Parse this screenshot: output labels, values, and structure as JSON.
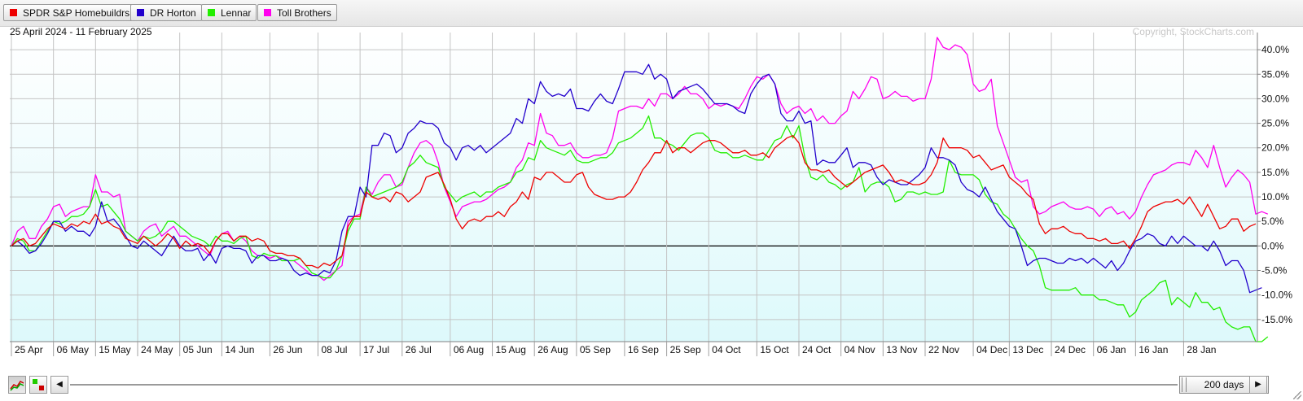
{
  "legend": {
    "items": [
      {
        "label": "SPDR S&P Homebuildrs",
        "color": "#ee0000"
      },
      {
        "label": "DR Horton",
        "color": "#2200cc"
      },
      {
        "label": "Lennar",
        "color": "#22ee00"
      },
      {
        "label": "Toll Brothers",
        "color": "#ff00ee"
      }
    ]
  },
  "chart_data": {
    "type": "line",
    "date_range": "25 April 2024 - 11 February 2025",
    "copyright": "Copyright, StockCharts.com",
    "y_unit": "%",
    "ylim": [
      -19.5,
      43.5
    ],
    "y_ticks": [
      40,
      35,
      30,
      25,
      20,
      15,
      10,
      5,
      0,
      -5,
      -10,
      -15
    ],
    "y_tick_labels": [
      "40.0%",
      "35.0%",
      "30.0%",
      "25.0%",
      "20.0%",
      "15.0%",
      "10.0%",
      "5.0%",
      "0.0%",
      "-5.0%",
      "-10.0%",
      "-15.0%"
    ],
    "x_labels": [
      "25 Apr",
      "06 May",
      "15 May",
      "24 May",
      "05 Jun",
      "14 Jun",
      "26 Jun",
      "08 Jul",
      "17 Jul",
      "26 Jul",
      "06 Aug",
      "15 Aug",
      "26 Aug",
      "05 Sep",
      "16 Sep",
      "25 Sep",
      "04 Oct",
      "15 Oct",
      "24 Oct",
      "04 Nov",
      "13 Nov",
      "22 Nov",
      "04 Dec",
      "13 Dec",
      "24 Dec",
      "06 Jan",
      "16 Jan",
      "28 Jan"
    ],
    "x_label_index": [
      0,
      7,
      14,
      21,
      28,
      35,
      43,
      51,
      58,
      65,
      73,
      80,
      87,
      94,
      102,
      109,
      116,
      124,
      131,
      138,
      145,
      152,
      160,
      166,
      173,
      180,
      187,
      195
    ],
    "grid": true,
    "legend_placement": "top-left",
    "series": [
      {
        "name": "SPDR S&P Homebuildrs",
        "color": "#ee0000",
        "values": [
          0,
          1,
          1.5,
          0,
          0.5,
          2,
          3.5,
          4.5,
          4,
          3.5,
          4.5,
          4,
          5,
          4.5,
          6.5,
          4.5,
          5,
          4,
          3.5,
          1.5,
          1,
          0.5,
          2,
          1,
          0,
          1,
          2.5,
          1.5,
          -0.5,
          1,
          0,
          0.5,
          0,
          -1.5,
          1,
          2.5,
          2.5,
          1,
          2,
          2,
          1,
          1.5,
          1,
          -1,
          -1.5,
          -1.5,
          -2,
          -2,
          -2.5,
          -4,
          -4,
          -4.5,
          -3.5,
          -4,
          -3,
          -2,
          4,
          6,
          6,
          11,
          10,
          9.5,
          10,
          9,
          11,
          10.5,
          9,
          10,
          11,
          14,
          14.5,
          15,
          12.5,
          9.5,
          5.5,
          3.5,
          5,
          5.5,
          5,
          6,
          6,
          7,
          6,
          8,
          9,
          11,
          9.5,
          14,
          13.5,
          15,
          15,
          14,
          13,
          13,
          14.5,
          15,
          12,
          10.5,
          10,
          9.5,
          9.5,
          10,
          10,
          11,
          13,
          15.5,
          17,
          19,
          19,
          21.5,
          19,
          20,
          20,
          19,
          20,
          21,
          21.5,
          21.5,
          21,
          20,
          19,
          19,
          19.5,
          18.5,
          18.5,
          19,
          18,
          20,
          21,
          22,
          22.5,
          21,
          17,
          15.5,
          15.5,
          15,
          15.5,
          14,
          13,
          12,
          13,
          14,
          15,
          15.5,
          16,
          16.5,
          15,
          13,
          13.5,
          13,
          12.5,
          12.5,
          13,
          14.5,
          17,
          22,
          20,
          20,
          20,
          19.5,
          18,
          18.5,
          17,
          15.5,
          16,
          16.5,
          14,
          13,
          12,
          10.5,
          9.5,
          4.5,
          2.5,
          3.5,
          3.5,
          4,
          3,
          2.5,
          2.5,
          1.5,
          1.5,
          1,
          1.5,
          0.5,
          0.5,
          1,
          -0.5,
          1.5,
          4,
          7,
          8,
          8.5,
          9,
          9,
          9.5,
          8.5,
          10,
          8,
          6,
          8.5,
          6,
          3.5,
          4,
          5.5,
          5.5,
          3,
          4,
          4.5
        ]
      },
      {
        "name": "DR Horton",
        "color": "#2200cc",
        "values": [
          0,
          1,
          0,
          -1.5,
          -1,
          0.5,
          2.5,
          5,
          5,
          3,
          4,
          3,
          3,
          2,
          4,
          9,
          5,
          5.5,
          4,
          2,
          0,
          -0.5,
          1,
          0,
          -1,
          -2,
          0,
          2,
          0,
          -1,
          -1,
          -0.5,
          -3,
          -1.5,
          -3.5,
          -0.5,
          0,
          -0.5,
          -0.5,
          -1,
          -3.5,
          -2,
          -2,
          -3,
          -3,
          -2.5,
          -3,
          -5,
          -6,
          -5.5,
          -6,
          -6,
          -5,
          -5.5,
          -3,
          3,
          6,
          6,
          12,
          10,
          20.5,
          20.5,
          23,
          22.5,
          19,
          20,
          23,
          24,
          25.5,
          25,
          25,
          24,
          21,
          20,
          17.5,
          20,
          20.5,
          19.5,
          20.5,
          19,
          20,
          21,
          22,
          23,
          26,
          25,
          30,
          29,
          33.5,
          31.5,
          30.5,
          31,
          30.5,
          32,
          28,
          28,
          27.5,
          29.5,
          31,
          29.5,
          29,
          32,
          35.5,
          35.5,
          35.5,
          35,
          37,
          34,
          35,
          34,
          30,
          31.5,
          32,
          32.5,
          33,
          32,
          30.5,
          29,
          29,
          29,
          28.5,
          27.5,
          27,
          31,
          33,
          34.5,
          35,
          33,
          27,
          25.5,
          25.5,
          27.5,
          25,
          25.5,
          16.5,
          17.5,
          17,
          17,
          18.5,
          20,
          16,
          17,
          17,
          16.5,
          14,
          12.5,
          13.5,
          13,
          12.5,
          12.5,
          13.5,
          14.5,
          16,
          20,
          18,
          18,
          17.5,
          16.5,
          13,
          11.5,
          11,
          10,
          12,
          9.5,
          7,
          5.5,
          4,
          3.5,
          0,
          -4,
          -3,
          -2.5,
          -2.5,
          -3,
          -3.5,
          -3.5,
          -2.5,
          -3,
          -2.5,
          -3.5,
          -2.5,
          -3.5,
          -4.5,
          -3,
          -5,
          -3.5,
          -1,
          1,
          1.5,
          2.5,
          2,
          0.5,
          0,
          2,
          0.5,
          2,
          1,
          0,
          0,
          -1,
          1,
          -1,
          -4,
          -3,
          -3,
          -5,
          -9.5,
          -9,
          -8.5
        ]
      },
      {
        "name": "Lennar",
        "color": "#22ee00",
        "values": [
          0,
          1.5,
          1,
          -1,
          -1,
          1,
          3,
          5,
          4.5,
          5,
          6,
          6,
          6.5,
          8,
          11.5,
          8,
          8.5,
          7,
          5.5,
          3,
          2,
          1,
          2,
          1.5,
          2,
          3,
          5,
          5,
          4,
          3,
          2,
          1.5,
          1,
          0,
          2,
          1,
          1,
          0.5,
          1.5,
          2,
          -2,
          -2.5,
          -1.5,
          -2,
          -2,
          -3,
          -3,
          -3,
          -2.5,
          -4,
          -5.5,
          -6,
          -6.5,
          -6.5,
          -5,
          -2,
          3,
          5.5,
          5.5,
          12,
          10,
          10.5,
          11,
          11.5,
          12,
          13,
          16,
          17,
          18.5,
          17,
          16.5,
          16,
          12,
          10.5,
          9,
          10,
          10.5,
          11,
          10,
          11,
          11,
          12,
          12.5,
          13,
          15,
          15.5,
          18,
          17.5,
          21.5,
          20,
          19.5,
          19,
          18.5,
          19.5,
          17.5,
          17,
          17,
          17.5,
          18,
          18,
          19,
          21,
          21.5,
          22,
          23,
          24,
          26.5,
          22,
          22,
          21,
          20.5,
          19.5,
          21,
          22.5,
          23,
          23,
          22,
          19.5,
          19,
          19,
          18,
          18,
          18.5,
          18,
          17.5,
          17.5,
          19.5,
          21.5,
          22,
          24.5,
          22,
          24.5,
          18,
          14,
          13.5,
          14.5,
          13,
          12.5,
          11.5,
          12.5,
          13,
          16,
          11,
          12.5,
          13,
          13,
          12,
          9,
          9.5,
          11,
          11,
          10.5,
          11,
          10.5,
          10.5,
          11,
          17.5,
          15,
          14.5,
          14.5,
          14.5,
          13.5,
          10.5,
          9,
          8.5,
          6.5,
          5.5,
          3.5,
          1.5,
          0,
          -1,
          -4,
          -8.5,
          -9,
          -9,
          -9,
          -9,
          -8.5,
          -10,
          -10,
          -10,
          -11,
          -11,
          -11.5,
          -12,
          -12,
          -14.5,
          -13.5,
          -11,
          -10,
          -9,
          -7.5,
          -7,
          -12,
          -10.5,
          -11.5,
          -12.5,
          -9.5,
          -11.5,
          -11.5,
          -13,
          -12.5,
          -15.5,
          -16.5,
          -17,
          -16.5,
          -16.5,
          -19.5,
          -19.5,
          -18.5
        ]
      },
      {
        "name": "Toll Brothers",
        "color": "#ff00ee",
        "values": [
          0,
          3,
          4,
          1.5,
          1.5,
          4,
          5.5,
          8,
          8.5,
          6,
          7,
          7.5,
          8,
          8,
          14.5,
          11,
          11,
          10,
          10.5,
          3,
          2,
          1,
          3,
          4,
          4.5,
          2,
          3,
          4,
          2,
          2,
          1,
          0,
          -1,
          -2,
          1,
          2.5,
          3,
          1,
          2,
          1,
          -1,
          -2,
          -2,
          -2.5,
          -2,
          -2.5,
          -3,
          -3,
          -4,
          -5,
          -6,
          -6,
          -7,
          -6,
          -5,
          -4,
          5,
          6,
          6.5,
          12,
          10.5,
          13,
          14.5,
          14.5,
          12,
          12.5,
          16,
          19,
          21,
          21.5,
          20.5,
          17,
          12,
          9,
          6,
          8,
          8.5,
          9,
          9,
          9.5,
          10.5,
          11.5,
          12,
          13,
          16,
          17.5,
          21,
          20.5,
          27,
          23,
          22.5,
          20.5,
          20.5,
          21,
          19,
          18,
          18,
          18.5,
          18.5,
          19,
          22,
          27.5,
          28,
          28.5,
          28.5,
          28,
          30,
          28.5,
          31,
          31,
          30,
          31,
          32.5,
          31,
          31,
          30,
          28,
          29,
          28.5,
          29,
          28.5,
          28,
          30,
          32.5,
          34.5,
          34,
          35,
          33,
          29,
          27,
          28,
          28.5,
          27,
          28,
          25.5,
          26.5,
          25,
          25,
          26.5,
          27.5,
          31.5,
          30,
          32,
          34.5,
          34,
          30,
          30.5,
          31.5,
          30.5,
          30.5,
          29.5,
          30,
          30,
          34,
          42.5,
          40.5,
          40,
          41,
          40.5,
          39,
          33,
          31.5,
          32,
          34,
          24.5,
          21,
          17.5,
          14,
          13,
          13.5,
          8,
          6.5,
          7,
          8,
          8.5,
          9,
          8,
          7.5,
          7.5,
          8,
          7.5,
          6,
          7.5,
          8,
          6.5,
          7,
          5.5,
          7,
          10,
          12.5,
          14.5,
          15,
          15.5,
          16.5,
          17,
          17,
          16.5,
          19.5,
          18,
          16,
          20.5,
          16,
          12,
          14,
          15.5,
          14.5,
          13,
          6.5,
          7,
          6.5
        ]
      }
    ]
  },
  "bottom_bar": {
    "period_label": "200 days",
    "left_arrow": "◀",
    "right_arrow": "▶"
  }
}
